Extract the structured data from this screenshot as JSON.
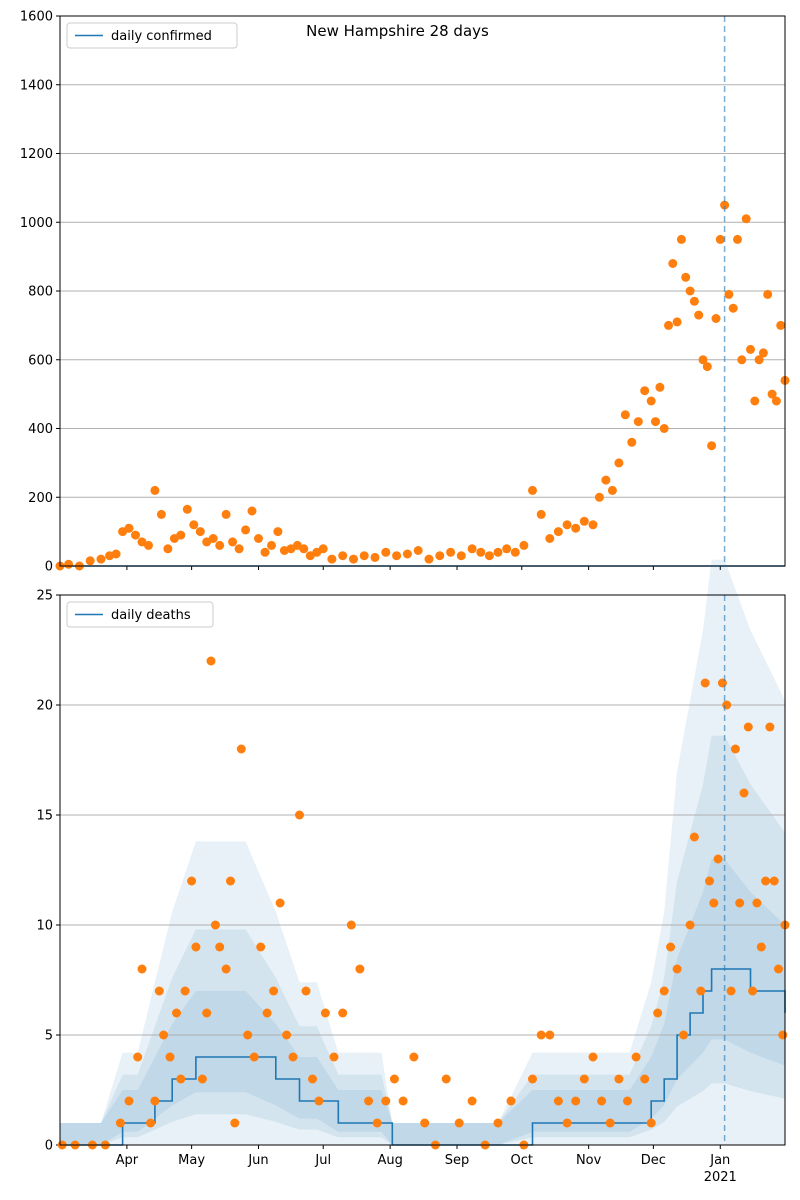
{
  "chart_data": [
    {
      "type": "scatter",
      "title": "New Hampshire 28 days",
      "ylim": [
        0,
        1600
      ],
      "yticks": [
        0,
        200,
        400,
        600,
        800,
        1000,
        1200,
        1400,
        1600
      ],
      "xticklabels": [],
      "grid": "y",
      "legend": {
        "position": "top-left",
        "entries": [
          "daily confirmed"
        ]
      },
      "vline_x": "2021-01-03",
      "series": [
        {
          "name": "daily confirmed",
          "kind": "line",
          "color": "#1f77b4",
          "x": [
            "2020-03-01",
            "2021-01-31"
          ],
          "y": [
            0,
            0
          ]
        },
        {
          "kind": "points",
          "color": "#ff7f0e",
          "x": [
            "2020-03-01",
            "2020-03-05",
            "2020-03-10",
            "2020-03-15",
            "2020-03-20",
            "2020-03-24",
            "2020-03-27",
            "2020-03-30",
            "2020-04-02",
            "2020-04-05",
            "2020-04-08",
            "2020-04-11",
            "2020-04-14",
            "2020-04-17",
            "2020-04-20",
            "2020-04-23",
            "2020-04-26",
            "2020-04-29",
            "2020-05-02",
            "2020-05-05",
            "2020-05-08",
            "2020-05-11",
            "2020-05-14",
            "2020-05-17",
            "2020-05-20",
            "2020-05-23",
            "2020-05-26",
            "2020-05-29",
            "2020-06-01",
            "2020-06-04",
            "2020-06-07",
            "2020-06-10",
            "2020-06-13",
            "2020-06-16",
            "2020-06-19",
            "2020-06-22",
            "2020-06-25",
            "2020-06-28",
            "2020-07-01",
            "2020-07-05",
            "2020-07-10",
            "2020-07-15",
            "2020-07-20",
            "2020-07-25",
            "2020-07-30",
            "2020-08-04",
            "2020-08-09",
            "2020-08-14",
            "2020-08-19",
            "2020-08-24",
            "2020-08-29",
            "2020-09-03",
            "2020-09-08",
            "2020-09-12",
            "2020-09-16",
            "2020-09-20",
            "2020-09-24",
            "2020-09-28",
            "2020-10-02",
            "2020-10-06",
            "2020-10-10",
            "2020-10-14",
            "2020-10-18",
            "2020-10-22",
            "2020-10-26",
            "2020-10-30",
            "2020-11-03",
            "2020-11-06",
            "2020-11-09",
            "2020-11-12",
            "2020-11-15",
            "2020-11-18",
            "2020-11-21",
            "2020-11-24",
            "2020-11-27",
            "2020-11-30",
            "2020-12-02",
            "2020-12-04",
            "2020-12-06",
            "2020-12-08",
            "2020-12-10",
            "2020-12-12",
            "2020-12-14",
            "2020-12-16",
            "2020-12-18",
            "2020-12-20",
            "2020-12-22",
            "2020-12-24",
            "2020-12-26",
            "2020-12-28",
            "2020-12-30",
            "2021-01-01",
            "2021-01-03",
            "2021-01-05",
            "2021-01-07",
            "2021-01-09",
            "2021-01-11",
            "2021-01-13",
            "2021-01-15",
            "2021-01-17",
            "2021-01-19",
            "2021-01-21",
            "2021-01-23",
            "2021-01-25",
            "2021-01-27",
            "2021-01-29",
            "2021-01-31"
          ],
          "y": [
            0,
            5,
            0,
            15,
            20,
            30,
            35,
            100,
            110,
            90,
            70,
            60,
            220,
            150,
            50,
            80,
            90,
            165,
            120,
            100,
            70,
            80,
            60,
            150,
            70,
            50,
            105,
            160,
            80,
            40,
            60,
            100,
            45,
            50,
            60,
            50,
            30,
            40,
            50,
            20,
            30,
            20,
            30,
            25,
            40,
            30,
            35,
            45,
            20,
            30,
            40,
            30,
            50,
            40,
            30,
            40,
            50,
            40,
            60,
            220,
            150,
            80,
            100,
            120,
            110,
            130,
            120,
            200,
            250,
            220,
            300,
            440,
            360,
            420,
            510,
            480,
            420,
            520,
            400,
            700,
            880,
            710,
            950,
            840,
            800,
            770,
            730,
            600,
            580,
            350,
            720,
            950,
            1050,
            790,
            750,
            950,
            600,
            1010,
            630,
            480,
            600,
            620,
            790,
            500,
            480,
            700,
            540
          ]
        }
      ]
    },
    {
      "type": "scatter",
      "ylim": [
        0,
        25
      ],
      "yticks": [
        0,
        5,
        10,
        15,
        20,
        25
      ],
      "xticklabels": [
        "Apr",
        "May",
        "Jun",
        "Jul",
        "Aug",
        "Sep",
        "Oct",
        "Nov",
        "Dec",
        "Jan"
      ],
      "xticks": [
        "2020-04-01",
        "2020-05-01",
        "2020-06-01",
        "2020-07-01",
        "2020-08-01",
        "2020-09-01",
        "2020-10-01",
        "2020-11-01",
        "2020-12-01",
        "2021-01-01"
      ],
      "year_label": "2021",
      "grid": "y",
      "legend": {
        "position": "top-left",
        "entries": [
          "daily deaths"
        ]
      },
      "vline_x": "2021-01-03",
      "series": [
        {
          "name": "daily deaths",
          "kind": "line",
          "color": "#1f77b4",
          "x": [
            "2020-03-01",
            "2020-03-20",
            "2020-03-30",
            "2020-04-06",
            "2020-04-14",
            "2020-04-22",
            "2020-05-03",
            "2020-05-13",
            "2020-05-26",
            "2020-06-09",
            "2020-06-20",
            "2020-06-28",
            "2020-07-08",
            "2020-07-18",
            "2020-07-28",
            "2020-08-02",
            "2020-08-20",
            "2020-09-20",
            "2020-10-06",
            "2020-10-14",
            "2020-11-01",
            "2020-11-20",
            "2020-11-30",
            "2020-12-06",
            "2020-12-12",
            "2020-12-18",
            "2020-12-24",
            "2020-12-28",
            "2021-01-03",
            "2021-01-15",
            "2021-01-31"
          ],
          "y": [
            0,
            0,
            1,
            1,
            2,
            3,
            4,
            4,
            4,
            3,
            2,
            2,
            1,
            1,
            1,
            0,
            0,
            0,
            1,
            1,
            1,
            1,
            2,
            3,
            5,
            6,
            7,
            8,
            8,
            7,
            6
          ]
        },
        {
          "kind": "points",
          "color": "#ff7f0e",
          "x": [
            "2020-03-02",
            "2020-03-08",
            "2020-03-16",
            "2020-03-22",
            "2020-03-29",
            "2020-04-02",
            "2020-04-06",
            "2020-04-08",
            "2020-04-12",
            "2020-04-14",
            "2020-04-16",
            "2020-04-18",
            "2020-04-21",
            "2020-04-24",
            "2020-04-26",
            "2020-04-28",
            "2020-05-01",
            "2020-05-03",
            "2020-05-06",
            "2020-05-08",
            "2020-05-10",
            "2020-05-12",
            "2020-05-14",
            "2020-05-17",
            "2020-05-19",
            "2020-05-21",
            "2020-05-24",
            "2020-05-27",
            "2020-05-30",
            "2020-06-02",
            "2020-06-05",
            "2020-06-08",
            "2020-06-11",
            "2020-06-14",
            "2020-06-17",
            "2020-06-20",
            "2020-06-23",
            "2020-06-26",
            "2020-06-29",
            "2020-07-02",
            "2020-07-06",
            "2020-07-10",
            "2020-07-14",
            "2020-07-18",
            "2020-07-22",
            "2020-07-26",
            "2020-07-30",
            "2020-08-03",
            "2020-08-07",
            "2020-08-12",
            "2020-08-17",
            "2020-08-22",
            "2020-08-27",
            "2020-09-02",
            "2020-09-08",
            "2020-09-14",
            "2020-09-20",
            "2020-09-26",
            "2020-10-02",
            "2020-10-06",
            "2020-10-10",
            "2020-10-14",
            "2020-10-18",
            "2020-10-22",
            "2020-10-26",
            "2020-10-30",
            "2020-11-03",
            "2020-11-07",
            "2020-11-11",
            "2020-11-15",
            "2020-11-19",
            "2020-11-23",
            "2020-11-27",
            "2020-11-30",
            "2020-12-03",
            "2020-12-06",
            "2020-12-09",
            "2020-12-12",
            "2020-12-15",
            "2020-12-18",
            "2020-12-20",
            "2020-12-23",
            "2020-12-25",
            "2020-12-27",
            "2020-12-29",
            "2020-12-31",
            "2021-01-02",
            "2021-01-04",
            "2021-01-06",
            "2021-01-08",
            "2021-01-10",
            "2021-01-12",
            "2021-01-14",
            "2021-01-16",
            "2021-01-18",
            "2021-01-20",
            "2021-01-22",
            "2021-01-24",
            "2021-01-26",
            "2021-01-28",
            "2021-01-30",
            "2021-01-31"
          ],
          "y": [
            0,
            0,
            0,
            0,
            1,
            2,
            4,
            8,
            1,
            2,
            7,
            5,
            4,
            6,
            3,
            7,
            12,
            9,
            3,
            6,
            22,
            10,
            9,
            8,
            12,
            1,
            18,
            5,
            4,
            9,
            6,
            7,
            11,
            5,
            4,
            15,
            7,
            3,
            2,
            6,
            4,
            6,
            10,
            8,
            2,
            1,
            2,
            3,
            2,
            4,
            1,
            0,
            3,
            1,
            2,
            0,
            1,
            2,
            0,
            3,
            5,
            5,
            2,
            1,
            2,
            3,
            4,
            2,
            1,
            3,
            2,
            4,
            3,
            1,
            6,
            7,
            9,
            8,
            5,
            10,
            14,
            7,
            21,
            12,
            11,
            13,
            21,
            20,
            7,
            18,
            11,
            16,
            19,
            7,
            11,
            9,
            12,
            19,
            12,
            8,
            5,
            10
          ]
        }
      ]
    }
  ]
}
